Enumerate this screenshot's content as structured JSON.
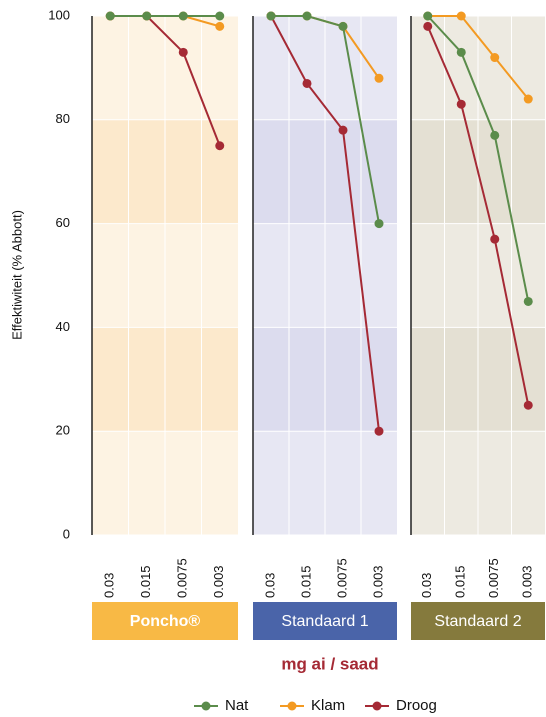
{
  "y_label": "Effektiwiteit (% Abbott)",
  "x_label": "mg ai / saad",
  "chart_data": [
    {
      "type": "line",
      "title": "Poncho®",
      "title_color": "#f8b945",
      "background": [
        "#fdf3e3",
        "#fce9cc"
      ],
      "categories": [
        "0.03",
        "0.015",
        "0.0075",
        "0.003"
      ],
      "series": [
        {
          "name": "Nat",
          "color": "#5b8c4b",
          "values": [
            100,
            100,
            100,
            100
          ]
        },
        {
          "name": "Klam",
          "color": "#f39a22",
          "values": [
            100,
            100,
            100,
            98
          ]
        },
        {
          "name": "Droog",
          "color": "#a52a35",
          "values": [
            100,
            100,
            93,
            75
          ]
        }
      ],
      "ylim": [
        0,
        100
      ],
      "yticks": [
        0,
        20,
        40,
        60,
        80,
        100
      ]
    },
    {
      "type": "line",
      "title": "Standaard 1",
      "title_color": "#4a64a9",
      "background": [
        "#e7e7f3",
        "#dcdcee"
      ],
      "categories": [
        "0.03",
        "0.015",
        "0.0075",
        "0.003"
      ],
      "series": [
        {
          "name": "Nat",
          "color": "#5b8c4b",
          "values": [
            100,
            100,
            98,
            60
          ]
        },
        {
          "name": "Klam",
          "color": "#f39a22",
          "values": [
            100,
            100,
            98,
            88
          ]
        },
        {
          "name": "Droog",
          "color": "#a52a35",
          "values": [
            100,
            87,
            78,
            20
          ]
        }
      ],
      "ylim": [
        0,
        100
      ],
      "yticks": [
        0,
        20,
        40,
        60,
        80,
        100
      ]
    },
    {
      "type": "line",
      "title": "Standaard 2",
      "title_color": "#857a3d",
      "background": [
        "#edeae1",
        "#e4e0d3"
      ],
      "categories": [
        "0.03",
        "0.015",
        "0.0075",
        "0.003"
      ],
      "series": [
        {
          "name": "Nat",
          "color": "#5b8c4b",
          "values": [
            100,
            93,
            77,
            45
          ]
        },
        {
          "name": "Klam",
          "color": "#f39a22",
          "values": [
            100,
            100,
            92,
            84
          ]
        },
        {
          "name": "Droog",
          "color": "#a52a35",
          "values": [
            98,
            83,
            57,
            25
          ]
        }
      ],
      "ylim": [
        0,
        100
      ],
      "yticks": [
        0,
        20,
        40,
        60,
        80,
        100
      ]
    }
  ]
}
